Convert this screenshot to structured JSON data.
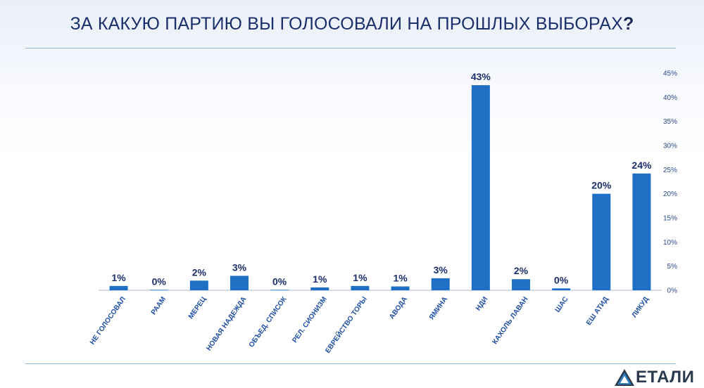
{
  "chart_data": {
    "type": "bar",
    "title_main": "ЗА КАКУЮ ПАРТИЮ ВЫ ГОЛОСОВАЛИ НА ПРОШЛЫХ ВЫБОРАХ",
    "title_mark": "?",
    "categories": [
      "НЕ ГОЛОСОВАЛ",
      "РААМ",
      "МЕРЕЦ",
      "НОВАЯ НАДЕЖДА",
      "ОБЪЕД. СПИСОК",
      "РЕЛ. СИОНИЗМ",
      "ЕВРЕЙСТВО ТОРЫ",
      "АВОДА",
      "ЯМИНА",
      "НДИ",
      "КАХОЛЬ ЛАВАН",
      "ШАС",
      "ЕШ АТИД",
      "ЛИКУД"
    ],
    "values": [
      0.9,
      0.1,
      2.0,
      3.0,
      0.1,
      0.6,
      0.9,
      0.8,
      2.5,
      42.5,
      2.3,
      0.4,
      20.0,
      24.2
    ],
    "value_labels": [
      "1%",
      "0%",
      "2%",
      "3%",
      "0%",
      "1%",
      "1%",
      "1%",
      "3%",
      "43%",
      "2%",
      "0%",
      "20%",
      "24%"
    ],
    "y_ticks": [
      0,
      5,
      10,
      15,
      20,
      25,
      30,
      35,
      40,
      45
    ],
    "y_tick_labels": [
      "0%",
      "5%",
      "10%",
      "15%",
      "20%",
      "25%",
      "30%",
      "35%",
      "40%",
      "45%"
    ],
    "ylim": [
      0,
      45
    ],
    "y_axis_position": "right",
    "grid": false,
    "bar_color": "#1f6fc5",
    "xlabel": "",
    "ylabel": ""
  },
  "logo": {
    "text": "ЕТАЛИ",
    "color": "#2b3a4e",
    "accent": "#2f7fc1"
  }
}
